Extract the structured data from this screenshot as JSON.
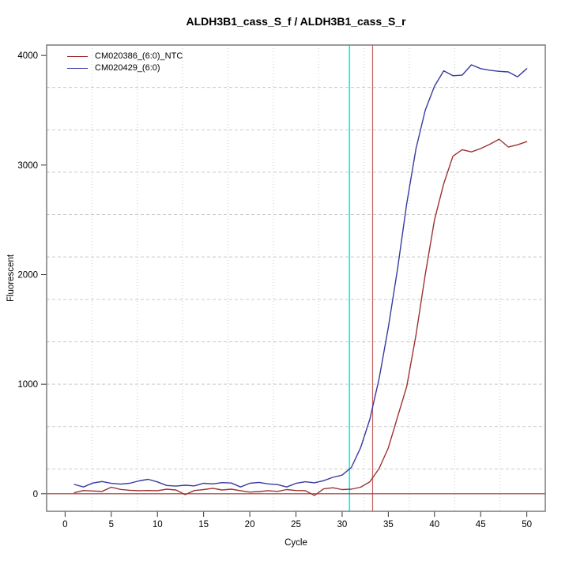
{
  "chart_data": {
    "type": "line",
    "title": "ALDH3B1_cass_S_f / ALDH3B1_cass_S_r",
    "xlabel": "Cycle",
    "ylabel": "Fluorescent",
    "xlim": [
      -2,
      52
    ],
    "ylim": [
      -160,
      4095
    ],
    "x_ticks": [
      0,
      5,
      10,
      15,
      20,
      25,
      30,
      35,
      40,
      45,
      50
    ],
    "y_ticks": [
      0,
      1000,
      2000,
      3000,
      4000
    ],
    "grid": {
      "divisions": 11,
      "color": "#c9c9c9",
      "horizontal_style": "dashed",
      "vertical_style": "dotted"
    },
    "legend_position": "top-left",
    "x": [
      1,
      2,
      3,
      4,
      5,
      6,
      7,
      8,
      9,
      10,
      11,
      12,
      13,
      14,
      15,
      16,
      17,
      18,
      19,
      20,
      21,
      22,
      23,
      24,
      25,
      26,
      27,
      28,
      29,
      30,
      31,
      32,
      33,
      34,
      35,
      36,
      37,
      38,
      39,
      40,
      41,
      42,
      43,
      44,
      45,
      46,
      47,
      48,
      49,
      50
    ],
    "series": [
      {
        "name": "CM020386_(6:0)_NTC",
        "color": "#9e3232",
        "values": [
          10,
          30,
          25,
          22,
          60,
          40,
          32,
          28,
          30,
          28,
          42,
          35,
          -8,
          30,
          38,
          50,
          35,
          42,
          28,
          15,
          20,
          28,
          22,
          38,
          30,
          28,
          -15,
          45,
          55,
          38,
          42,
          60,
          110,
          230,
          420,
          700,
          980,
          1450,
          2000,
          2500,
          2830,
          3080,
          3140,
          3120,
          3150,
          3190,
          3236,
          3164,
          3185,
          3214
        ]
      },
      {
        "name": "CM020429_(6:0)",
        "color": "#3a3aa0",
        "values": [
          85,
          62,
          98,
          112,
          95,
          88,
          96,
          118,
          132,
          108,
          76,
          70,
          78,
          72,
          96,
          90,
          102,
          98,
          62,
          96,
          104,
          90,
          84,
          62,
          95,
          110,
          100,
          120,
          150,
          170,
          240,
          420,
          680,
          1050,
          1520,
          2050,
          2650,
          3150,
          3500,
          3720,
          3860,
          3815,
          3820,
          3915,
          3880,
          3865,
          3855,
          3850,
          3805,
          3880
        ]
      }
    ],
    "threshold_line": {
      "y": 0,
      "color": "#9e3232"
    },
    "ct_lines": [
      {
        "x": 30.8,
        "color": "#00eeee",
        "name": "ct-line-cm020429"
      },
      {
        "x": 33.3,
        "color": "#c46262",
        "name": "ct-line-cm020386-ntc"
      }
    ],
    "axis": {
      "box_color": "#7a7a7a",
      "tick_color": "#333333",
      "tick_label_color": "#000000"
    }
  }
}
